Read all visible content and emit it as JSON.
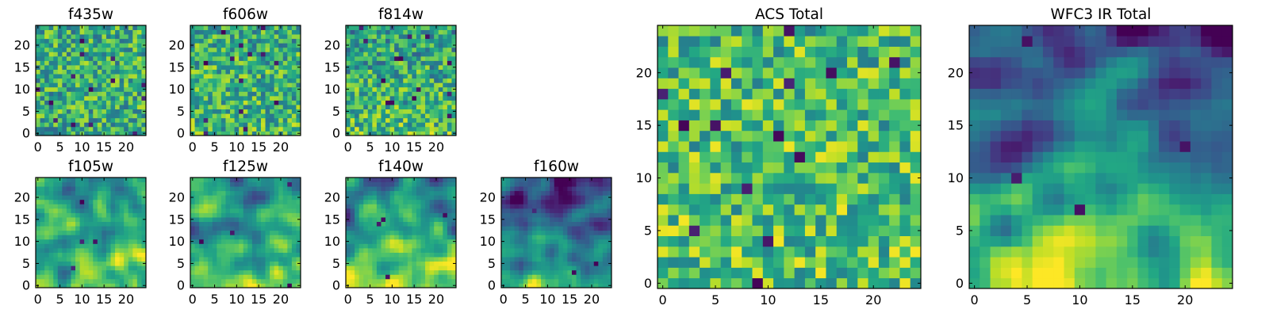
{
  "chart_data": [
    {
      "type": "heatmap",
      "title": "f435w",
      "x_ticks": [
        "0",
        "5",
        "10",
        "15",
        "20"
      ],
      "y_ticks": [
        "0",
        "5",
        "10",
        "15",
        "20"
      ],
      "xlim": [
        0,
        24
      ],
      "ylim": [
        0,
        24
      ],
      "grid_size": 25,
      "colormap": "viridis",
      "texture": "noise",
      "gradient": 0.0,
      "level": 0.62
    },
    {
      "type": "heatmap",
      "title": "f606w",
      "x_ticks": [
        "0",
        "5",
        "10",
        "15",
        "20"
      ],
      "y_ticks": [
        "0",
        "5",
        "10",
        "15",
        "20"
      ],
      "xlim": [
        0,
        24
      ],
      "ylim": [
        0,
        24
      ],
      "grid_size": 25,
      "colormap": "viridis",
      "texture": "noise",
      "gradient": 0.05,
      "level": 0.64
    },
    {
      "type": "heatmap",
      "title": "f814w",
      "x_ticks": [
        "0",
        "5",
        "10",
        "15",
        "20"
      ],
      "y_ticks": [
        "0",
        "5",
        "10",
        "15",
        "20"
      ],
      "xlim": [
        0,
        24
      ],
      "ylim": [
        0,
        24
      ],
      "grid_size": 25,
      "colormap": "viridis",
      "texture": "noise",
      "gradient": 0.15,
      "level": 0.62
    },
    {
      "type": "heatmap",
      "title": "f105w",
      "x_ticks": [
        "0",
        "5",
        "10",
        "15",
        "20"
      ],
      "y_ticks": [
        "0",
        "5",
        "10",
        "15",
        "20"
      ],
      "xlim": [
        0,
        24
      ],
      "ylim": [
        0,
        24
      ],
      "grid_size": 25,
      "colormap": "viridis",
      "texture": "smooth",
      "gradient": 0.3,
      "level": 0.6
    },
    {
      "type": "heatmap",
      "title": "f125w",
      "x_ticks": [
        "0",
        "5",
        "10",
        "15",
        "20"
      ],
      "y_ticks": [
        "0",
        "5",
        "10",
        "15",
        "20"
      ],
      "xlim": [
        0,
        24
      ],
      "ylim": [
        0,
        24
      ],
      "grid_size": 25,
      "colormap": "viridis",
      "texture": "smooth",
      "gradient": 0.35,
      "level": 0.58
    },
    {
      "type": "heatmap",
      "title": "f140w",
      "x_ticks": [
        "0",
        "5",
        "10",
        "15",
        "20"
      ],
      "y_ticks": [
        "0",
        "5",
        "10",
        "15",
        "20"
      ],
      "xlim": [
        0,
        24
      ],
      "ylim": [
        0,
        24
      ],
      "grid_size": 25,
      "colormap": "viridis",
      "texture": "smooth",
      "gradient": 0.45,
      "level": 0.55
    },
    {
      "type": "heatmap",
      "title": "f160w",
      "x_ticks": [
        "0",
        "5",
        "10",
        "15",
        "20"
      ],
      "y_ticks": [
        "0",
        "5",
        "10",
        "15",
        "20"
      ],
      "xlim": [
        0,
        24
      ],
      "ylim": [
        0,
        24
      ],
      "grid_size": 25,
      "colormap": "viridis",
      "texture": "smooth",
      "gradient": 0.6,
      "level": 0.45
    },
    {
      "type": "heatmap",
      "title": "ACS Total",
      "x_ticks": [
        "0",
        "5",
        "10",
        "15",
        "20"
      ],
      "y_ticks": [
        "0",
        "5",
        "10",
        "15",
        "20"
      ],
      "xlim": [
        0,
        24
      ],
      "ylim": [
        0,
        24
      ],
      "grid_size": 25,
      "colormap": "viridis",
      "texture": "noise",
      "gradient": 0.05,
      "level": 0.7
    },
    {
      "type": "heatmap",
      "title": "WFC3 IR Total",
      "x_ticks": [
        "0",
        "5",
        "10",
        "15",
        "20"
      ],
      "y_ticks": [
        "0",
        "5",
        "10",
        "15",
        "20"
      ],
      "xlim": [
        0,
        24
      ],
      "ylim": [
        0,
        24
      ],
      "grid_size": 25,
      "colormap": "viridis",
      "texture": "smooth",
      "gradient": 0.65,
      "level": 0.42
    }
  ]
}
